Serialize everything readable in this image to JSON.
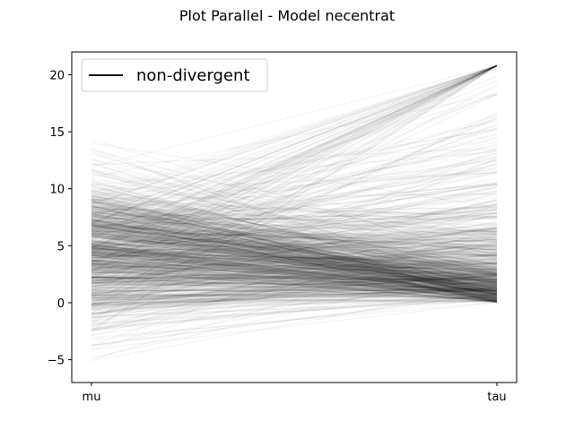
{
  "chart_data": {
    "type": "parallel",
    "title": "Plot Parallel - Model necentrat",
    "xlabel": "",
    "ylabel": "",
    "categories": [
      "mu",
      "tau"
    ],
    "yticks": [
      -5,
      0,
      5,
      10,
      15,
      20
    ],
    "ylim": [
      -7.0,
      22.0
    ],
    "legend": {
      "position": "top-left",
      "entries": [
        "non-divergent"
      ]
    },
    "series_summary": {
      "name": "non-divergent",
      "line_count": 900,
      "alpha": 0.04,
      "color": "#000000",
      "mu": {
        "mean": 4.4,
        "sd": 3.3,
        "min": -5.7,
        "max": 15.0
      },
      "tau": {
        "median": 2.7,
        "min": 0.05,
        "max": 20.8,
        "distribution": "half-cauchy-like, right-skewed"
      }
    }
  },
  "colors": {
    "line": "#000000",
    "background": "#ffffff",
    "legend_border": "#cccccc"
  }
}
